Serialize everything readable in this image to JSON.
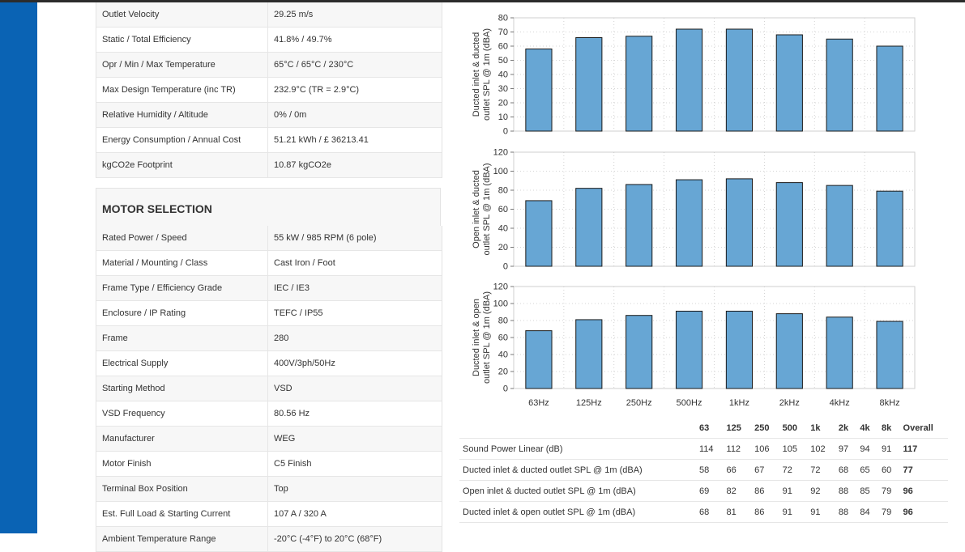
{
  "specs_top": [
    {
      "label": "Outlet Velocity",
      "value": "29.25 m/s"
    },
    {
      "label": "Static / Total Efficiency",
      "value": "41.8% / 49.7%"
    },
    {
      "label": "Opr / Min / Max Temperature",
      "value": "65°C / 65°C / 230°C"
    },
    {
      "label": "Max Design Temperature (inc TR)",
      "value": "232.9°C (TR = 2.9°C)"
    },
    {
      "label": "Relative Humidity / Altitude",
      "value": "0% / 0m"
    },
    {
      "label": "Energy Consumption / Annual Cost",
      "value": "51.21 kWh / £ 36213.41"
    },
    {
      "label": "kgCO2e Footprint",
      "value": "10.87 kgCO2e"
    }
  ],
  "motor_section_title": "MOTOR SELECTION",
  "specs_motor": [
    {
      "label": "Rated Power / Speed",
      "value": "55 kW / 985 RPM (6 pole)"
    },
    {
      "label": "Material / Mounting / Class",
      "value": "Cast Iron / Foot"
    },
    {
      "label": "Frame Type / Efficiency Grade",
      "value": "IEC / IE3"
    },
    {
      "label": "Enclosure / IP Rating",
      "value": "TEFC / IP55"
    },
    {
      "label": "Frame",
      "value": "280"
    },
    {
      "label": "Electrical Supply",
      "value": "400V/3ph/50Hz"
    },
    {
      "label": "Starting Method",
      "value": "VSD"
    },
    {
      "label": "VSD Frequency",
      "value": "80.56 Hz"
    },
    {
      "label": "Manufacturer",
      "value": "WEG"
    },
    {
      "label": "Motor Finish",
      "value": "C5 Finish"
    },
    {
      "label": "Terminal Box Position",
      "value": "Top"
    },
    {
      "label": "Est. Full Load & Starting Current",
      "value": "107 A / 320 A"
    },
    {
      "label": "Ambient Temperature Range",
      "value": "-20°C (-4°F) to 20°C (68°F)"
    }
  ],
  "chart_data": [
    {
      "type": "bar",
      "categories": [
        "63Hz",
        "125Hz",
        "250Hz",
        "500Hz",
        "1kHz",
        "2kHz",
        "4kHz",
        "8kHz"
      ],
      "values": [
        58,
        66,
        67,
        72,
        72,
        68,
        65,
        60
      ],
      "ylabel": "Ducted inlet & ducted outlet SPL @ 1m (dBA)",
      "ylim": [
        0,
        80
      ],
      "yticks": [
        0,
        10,
        20,
        30,
        40,
        50,
        60,
        70,
        80
      ],
      "grid": true
    },
    {
      "type": "bar",
      "categories": [
        "63Hz",
        "125Hz",
        "250Hz",
        "500Hz",
        "1kHz",
        "2kHz",
        "4kHz",
        "8kHz"
      ],
      "values": [
        69,
        82,
        86,
        91,
        92,
        88,
        85,
        79
      ],
      "ylabel": "Open inlet & ducted outlet SPL @ 1m (dBA)",
      "ylim": [
        0,
        120
      ],
      "yticks": [
        0,
        20,
        40,
        60,
        80,
        100,
        120
      ],
      "grid": true
    },
    {
      "type": "bar",
      "categories": [
        "63Hz",
        "125Hz",
        "250Hz",
        "500Hz",
        "1kHz",
        "2kHz",
        "4kHz",
        "8kHz"
      ],
      "values": [
        68,
        81,
        86,
        91,
        91,
        88,
        84,
        79
      ],
      "ylabel": "Ducted inlet & open outlet SPL @ 1m (dBA)",
      "ylim": [
        0,
        120
      ],
      "yticks": [
        0,
        20,
        40,
        60,
        80,
        100,
        120
      ],
      "grid": true
    }
  ],
  "sound_table": {
    "headers": [
      "63",
      "125",
      "250",
      "500",
      "1k",
      "2k",
      "4k",
      "8k",
      "Overall"
    ],
    "rows": [
      {
        "label": "Sound Power Linear (dB)",
        "values": [
          "114",
          "112",
          "106",
          "105",
          "102",
          "97",
          "94",
          "91"
        ],
        "overall": "117"
      },
      {
        "label": "Ducted inlet & ducted outlet SPL @ 1m (dBA)",
        "values": [
          "58",
          "66",
          "67",
          "72",
          "72",
          "68",
          "65",
          "60"
        ],
        "overall": "77"
      },
      {
        "label": "Open inlet & ducted outlet SPL @ 1m (dBA)",
        "values": [
          "69",
          "82",
          "86",
          "91",
          "92",
          "88",
          "85",
          "79"
        ],
        "overall": "96"
      },
      {
        "label": "Ducted inlet & open outlet SPL @ 1m (dBA)",
        "values": [
          "68",
          "81",
          "86",
          "91",
          "91",
          "88",
          "84",
          "79"
        ],
        "overall": "96"
      }
    ]
  },
  "colors": {
    "sidebar": "#0a63b4",
    "bar": "#67a6d4",
    "bar_stroke": "#1a1a1a"
  }
}
